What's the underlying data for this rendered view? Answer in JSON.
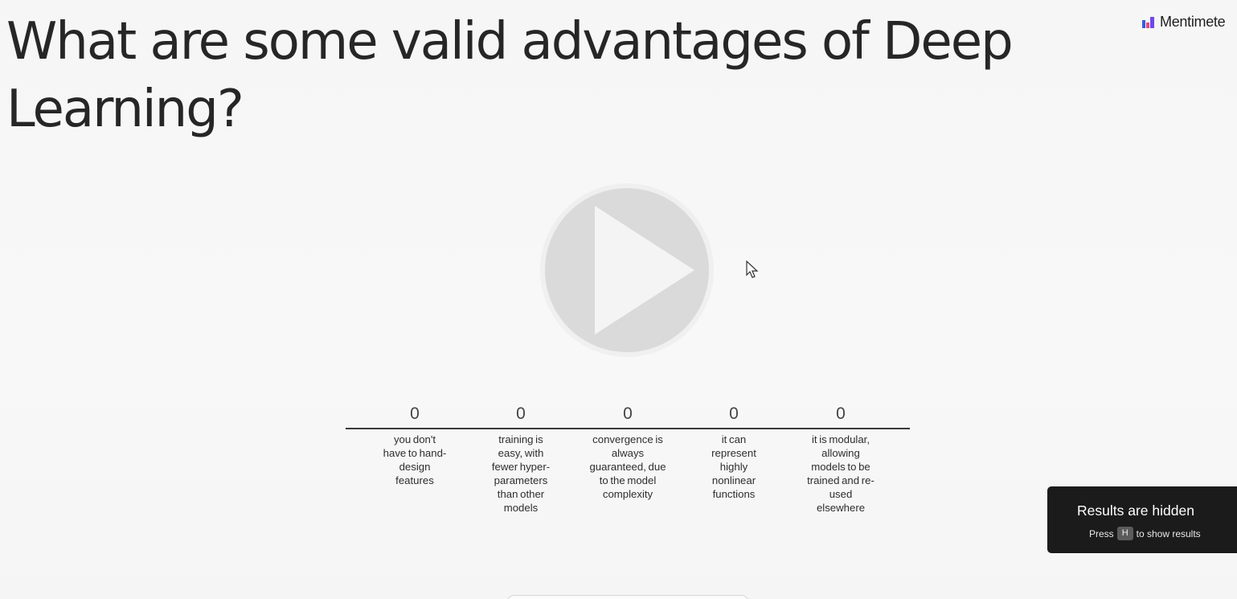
{
  "question": {
    "title": "What are some valid advantages of Deep Learning?"
  },
  "brand": {
    "name": "Mentimete",
    "colors": [
      "#3b5bdb",
      "#e64980",
      "#7048e8"
    ]
  },
  "player": {
    "icon": "play-icon",
    "color": "#d9d9d9"
  },
  "options": [
    {
      "count": "0",
      "label": "you don't have to hand-design features"
    },
    {
      "count": "0",
      "label": "training is easy, with fewer hyper-parameters than other models"
    },
    {
      "count": "0",
      "label": "convergence is always guaranteed, due to the model complexity"
    },
    {
      "count": "0",
      "label": "it can represent highly nonlinear functions"
    },
    {
      "count": "0",
      "label": "it is modular, allowing models to be trained and re-used elsewhere"
    }
  ],
  "results_notice": {
    "title": "Results are hidden",
    "press": "Press",
    "key": "H",
    "suffix": "to show results"
  }
}
